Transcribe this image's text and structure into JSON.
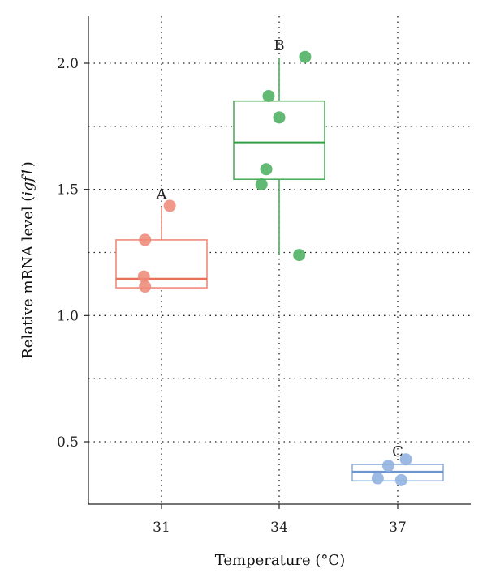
{
  "chart_data": {
    "type": "box",
    "title": "",
    "xlabel": "Temperature (°C)",
    "ylabel_prefix": "Relative mRNA level (",
    "ylabel_italic": "igf1",
    "ylabel_suffix": ")",
    "ylim": [
      0.25,
      2.2
    ],
    "yticks": [
      0.5,
      1.0,
      1.5,
      2.0
    ],
    "ytick_labels": [
      "0.5",
      "1.0",
      "1.5",
      "2.0"
    ],
    "y_minor_grid": [
      0.75,
      1.25,
      1.75
    ],
    "grid": "dotted",
    "categories": [
      "31",
      "34",
      "37"
    ],
    "groups": [
      {
        "category": "31",
        "letter": "A",
        "color": "#ee8a7a",
        "median_color": "#e8705a",
        "q1": 1.11,
        "median": 1.145,
        "q3": 1.3,
        "whisker_low": 1.11,
        "whisker_high": 1.43,
        "points": [
          {
            "dx": -0.14,
            "y": 1.3
          },
          {
            "dx": 0.07,
            "y": 1.435
          },
          {
            "dx": -0.15,
            "y": 1.155
          },
          {
            "dx": -0.14,
            "y": 1.115
          }
        ]
      },
      {
        "category": "34",
        "letter": "B",
        "color": "#4caf60",
        "median_color": "#2f9e45",
        "q1": 1.54,
        "median": 1.685,
        "q3": 1.85,
        "whisker_low": 1.24,
        "whisker_high": 2.02,
        "points": [
          {
            "dx": -0.09,
            "y": 1.87
          },
          {
            "dx": 0.22,
            "y": 2.025
          },
          {
            "dx": 0.0,
            "y": 1.785
          },
          {
            "dx": -0.11,
            "y": 1.58
          },
          {
            "dx": -0.15,
            "y": 1.52
          },
          {
            "dx": 0.17,
            "y": 1.24
          }
        ]
      },
      {
        "category": "37",
        "letter": "C",
        "color": "#8fb0e0",
        "median_color": "#6f95d0",
        "q1": 0.345,
        "median": 0.38,
        "q3": 0.41,
        "whisker_low": 0.345,
        "whisker_high": 0.41,
        "points": [
          {
            "dx": 0.07,
            "y": 0.43
          },
          {
            "dx": -0.08,
            "y": 0.405
          },
          {
            "dx": -0.17,
            "y": 0.355
          },
          {
            "dx": 0.03,
            "y": 0.348
          }
        ]
      }
    ]
  }
}
